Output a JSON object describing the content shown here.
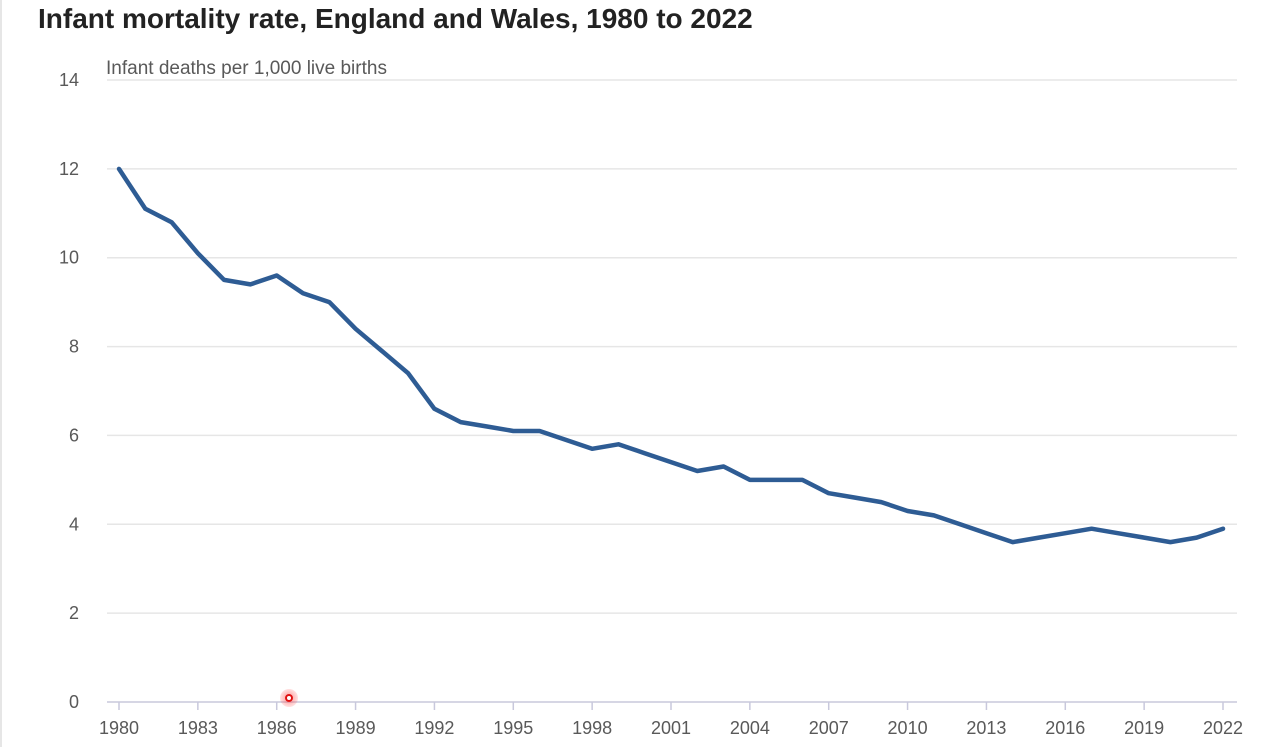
{
  "title": "Infant mortality rate, England and Wales, 1980 to 2022",
  "chart_data": {
    "type": "line",
    "title": "Infant mortality rate, England and Wales, 1980 to 2022",
    "ylabel": "Infant deaths per 1,000 live births",
    "xlabel": "",
    "x": [
      1980,
      1981,
      1982,
      1983,
      1984,
      1985,
      1986,
      1987,
      1988,
      1989,
      1990,
      1991,
      1992,
      1993,
      1994,
      1995,
      1996,
      1997,
      1998,
      1999,
      2000,
      2001,
      2002,
      2003,
      2004,
      2005,
      2006,
      2007,
      2008,
      2009,
      2010,
      2011,
      2012,
      2013,
      2014,
      2015,
      2016,
      2017,
      2018,
      2019,
      2020,
      2021,
      2022
    ],
    "series": [
      {
        "values": [
          12.0,
          11.1,
          10.8,
          10.1,
          9.5,
          9.4,
          9.6,
          9.2,
          9.0,
          8.4,
          7.9,
          7.4,
          6.6,
          6.3,
          6.2,
          6.1,
          6.1,
          5.9,
          5.7,
          5.8,
          5.6,
          5.4,
          5.2,
          5.3,
          5.0,
          5.0,
          5.0,
          4.7,
          4.6,
          4.5,
          4.3,
          4.2,
          4.0,
          3.8,
          3.6,
          3.7,
          3.8,
          3.9,
          3.8,
          3.7,
          3.6,
          3.7,
          3.9
        ]
      }
    ],
    "xticks": [
      "1980",
      "1983",
      "1986",
      "1989",
      "1992",
      "1995",
      "1998",
      "2001",
      "2004",
      "2007",
      "2010",
      "2013",
      "2016",
      "2019",
      "2022"
    ],
    "yticks": [
      "0",
      "2",
      "4",
      "6",
      "8",
      "10",
      "12",
      "14"
    ],
    "xlim": [
      1980,
      2022
    ],
    "ylim": [
      0,
      14
    ],
    "grid": true,
    "legend": "none",
    "colors": {
      "line": "#2e5c94",
      "grid": "#e6e6e6",
      "axis": "#c8c8dc",
      "text": "#595959",
      "title": "#222222"
    }
  }
}
